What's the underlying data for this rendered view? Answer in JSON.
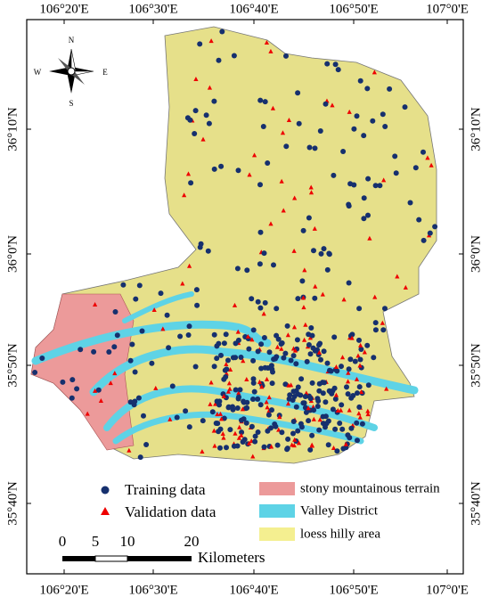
{
  "map": {
    "longitude_labels": [
      "106°20'E",
      "106°30'E",
      "106°40'E",
      "106°50'E",
      "107°0'E"
    ],
    "latitude_labels": [
      "36°10'N",
      "36°0'N",
      "35°50'N",
      "35°40'N"
    ],
    "compass": {
      "north": "N",
      "south": "S",
      "east": "E",
      "west": "W"
    },
    "legend": {
      "points": [
        "Training data",
        "Validation data"
      ],
      "areas": [
        "stony mountainous terrain",
        "Valley District",
        "loess hilly area"
      ]
    },
    "scale": {
      "ticks": [
        "0",
        "5",
        "10",
        "20"
      ],
      "unit": "Kilometers"
    }
  }
}
